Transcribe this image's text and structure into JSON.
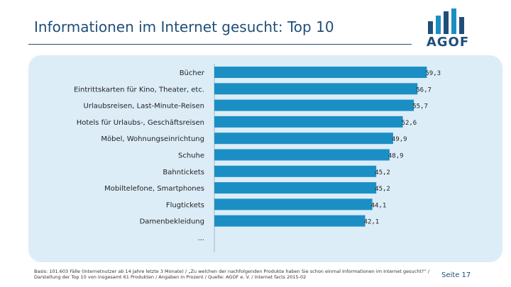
{
  "header": {
    "title": "Informationen im Internet gesucht: Top 10",
    "logo_text": "AGOF"
  },
  "chart_data": {
    "type": "bar",
    "orientation": "horizontal",
    "categories": [
      "Bücher",
      "Eintrittskarten für Kino, Theater, etc.",
      "Urlaubsreisen, Last-Minute-Reisen",
      "Hotels für Urlaubs-, Geschäftsreisen",
      "Möbel, Wohnungseinrichtung",
      "Schuhe",
      "Bahntickets",
      "Mobiltelefone, Smartphones",
      "Flugtickets",
      "Damenbekleidung"
    ],
    "values": [
      59.3,
      56.7,
      55.7,
      52.6,
      49.9,
      48.9,
      45.2,
      45.2,
      44.1,
      42.1
    ],
    "value_labels": [
      "59,3",
      "56,7",
      "55,7",
      "52,6",
      "49,9",
      "48,9",
      "45,2",
      "45,2",
      "44,1",
      "42,1"
    ],
    "trailing_label": "...",
    "xlim": [
      0,
      62
    ],
    "bar_color": "#1b8fc4",
    "grid": false
  },
  "footer": {
    "note": "Basis: 101.603 Fälle (Internetnutzer ab 14 Jahre letzte 3 Monate) / „Zu welchen der nachfolgenden Produkte haben Sie schon einmal Informationen im Internet gesucht?“ / Darstellung der Top 10 von insgesamt 61 Produkten / Angaben in Prozent / Quelle: AGOF e. V. / internet facts 2015-02",
    "page": "Seite 17"
  },
  "colors": {
    "title": "#1f4e79",
    "panel": "#dcedf8",
    "bar": "#1b8fc4"
  }
}
